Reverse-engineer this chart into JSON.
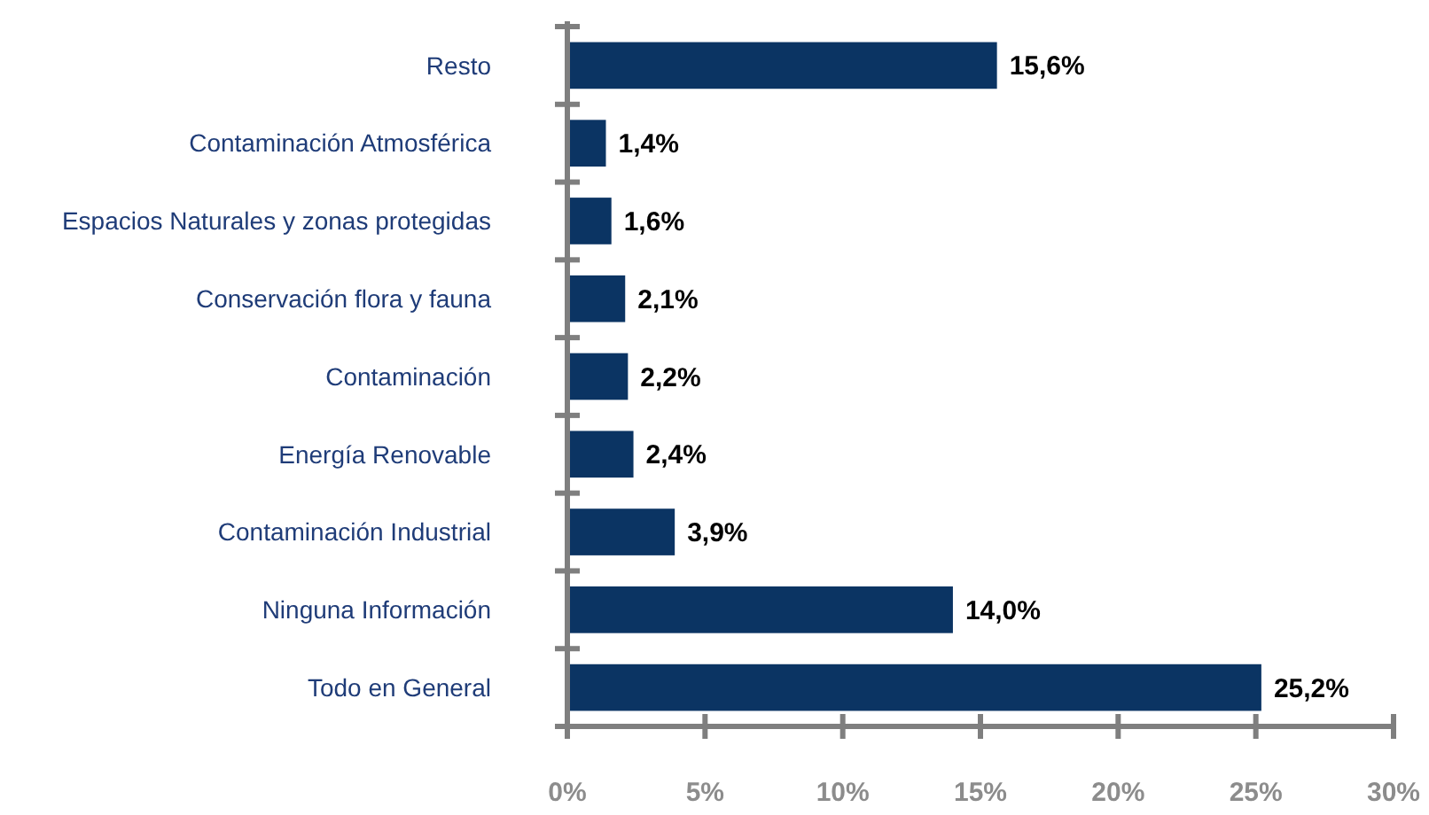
{
  "chart_data": {
    "type": "bar",
    "orientation": "horizontal",
    "categories": [
      "Resto",
      "Contaminación Atmosférica",
      "Espacios Naturales y zonas protegidas",
      "Conservación flora y fauna",
      "Contaminación",
      "Energía Renovable",
      "Contaminación Industrial",
      "Ninguna Información",
      "Todo en General"
    ],
    "values": [
      15.6,
      1.4,
      1.6,
      2.1,
      2.2,
      2.4,
      3.9,
      14.0,
      25.2
    ],
    "value_labels": [
      "15,6%",
      "1,4%",
      "1,6%",
      "2,1%",
      "2,2%",
      "2,4%",
      "3,9%",
      "14,0%",
      "25,2%"
    ],
    "color": "#0b3463",
    "xlim": [
      0,
      30
    ],
    "xticks": [
      {
        "value": 0,
        "label": "0%"
      },
      {
        "value": 5,
        "label": "5%"
      },
      {
        "value": 10,
        "label": "10%"
      },
      {
        "value": 15,
        "label": "15%"
      },
      {
        "value": 20,
        "label": "20%"
      },
      {
        "value": 25,
        "label": "25%"
      },
      {
        "value": 30,
        "label": "30%"
      }
    ],
    "grid": false
  }
}
